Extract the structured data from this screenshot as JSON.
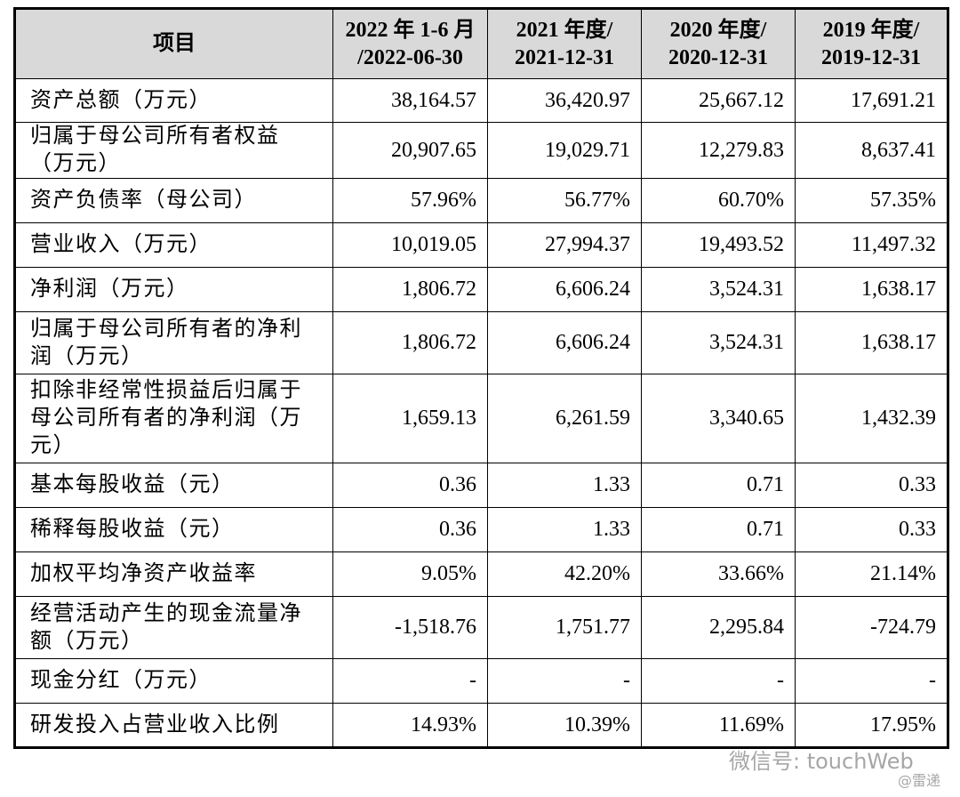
{
  "table": {
    "header": [
      [
        "项目"
      ],
      [
        "2022 年 1-6 月",
        "/2022-06-30"
      ],
      [
        "2021 年度/",
        "2021-12-31"
      ],
      [
        "2020 年度/",
        "2020-12-31"
      ],
      [
        "2019 年度/",
        "2019-12-31"
      ]
    ],
    "rows": [
      [
        "资产总额（万元）",
        "38,164.57",
        "36,420.97",
        "25,667.12",
        "17,691.21"
      ],
      [
        "归属于母公司所有者权益（万元）",
        "20,907.65",
        "19,029.71",
        "12,279.83",
        "8,637.41"
      ],
      [
        "资产负债率（母公司）",
        "57.96%",
        "56.77%",
        "60.70%",
        "57.35%"
      ],
      [
        "营业收入（万元）",
        "10,019.05",
        "27,994.37",
        "19,493.52",
        "11,497.32"
      ],
      [
        "净利润（万元）",
        "1,806.72",
        "6,606.24",
        "3,524.31",
        "1,638.17"
      ],
      [
        "归属于母公司所有者的净利润（万元）",
        "1,806.72",
        "6,606.24",
        "3,524.31",
        "1,638.17"
      ],
      [
        "扣除非经常性损益后归属于母公司所有者的净利润（万元）",
        "1,659.13",
        "6,261.59",
        "3,340.65",
        "1,432.39"
      ],
      [
        "基本每股收益（元）",
        "0.36",
        "1.33",
        "0.71",
        "0.33"
      ],
      [
        "稀释每股收益（元）",
        "0.36",
        "1.33",
        "0.71",
        "0.33"
      ],
      [
        "加权平均净资产收益率",
        "9.05%",
        "42.20%",
        "33.66%",
        "21.14%"
      ],
      [
        "经营活动产生的现金流量净额（万元）",
        "-1,518.76",
        "1,751.77",
        "2,295.84",
        "-724.79"
      ],
      [
        "现金分红（万元）",
        "-",
        "-",
        "-",
        "-"
      ],
      [
        "研发投入占营业收入比例",
        "14.93%",
        "10.39%",
        "11.69%",
        "17.95%"
      ]
    ]
  },
  "watermark": {
    "account": "微信号: touchWeb",
    "source": "@雷递"
  }
}
